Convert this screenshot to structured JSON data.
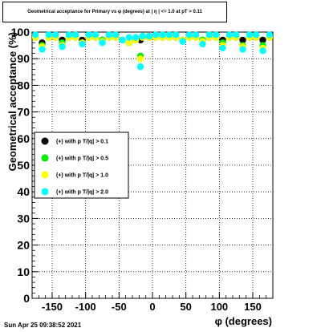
{
  "chart_data": {
    "type": "scatter",
    "title": "Geometrical acceptance for Primary vs φ (degrees) at | η | <= 1.0 at pT > 0.11",
    "xlabel": "φ (degrees)",
    "ylabel": "Geometrical acceptance (%)",
    "xlim": [
      -180,
      180
    ],
    "ylim": [
      0,
      100
    ],
    "x_ticks": [
      -150,
      -100,
      -50,
      0,
      50,
      100,
      150
    ],
    "y_ticks": [
      0,
      10,
      20,
      30,
      40,
      50,
      60,
      70,
      80,
      90,
      100
    ],
    "grid": true,
    "legend_position": "middle-left",
    "x": [
      -175,
      -165,
      -155,
      -145,
      -135,
      -125,
      -115,
      -105,
      -95,
      -85,
      -75,
      -65,
      -55,
      -45,
      -35,
      -25,
      -18,
      -15,
      -5,
      5,
      15,
      25,
      35,
      45,
      55,
      65,
      75,
      85,
      95,
      105,
      115,
      125,
      135,
      145,
      155,
      165,
      175
    ],
    "series": [
      {
        "name": "(+) with p T/|q| > 0.1",
        "color": "#000000",
        "values": [
          98,
          96,
          98,
          98,
          97,
          98,
          98,
          97,
          98,
          98,
          97,
          98,
          98,
          97,
          96,
          97,
          97,
          98,
          98,
          98,
          98,
          98,
          98,
          97,
          98,
          98,
          97,
          98,
          98,
          97,
          98,
          98,
          97,
          98,
          98,
          97,
          98
        ]
      },
      {
        "name": "(+) with p T/|q| > 0.5",
        "color": "#00ee00",
        "values": [
          98,
          95,
          98,
          98,
          96,
          98,
          98,
          96,
          98,
          98,
          97,
          98,
          98,
          97,
          96,
          97,
          91,
          98,
          98,
          98,
          98,
          98,
          98,
          97,
          98,
          98,
          97,
          98,
          98,
          96,
          98,
          98,
          95,
          98,
          98,
          95,
          98
        ]
      },
      {
        "name": "(+) with p T/|q| > 1.0",
        "color": "#ffff00",
        "values": [
          98,
          94.5,
          98,
          98,
          95,
          98,
          98,
          96,
          98,
          98,
          96.5,
          98,
          98,
          97,
          96,
          97,
          90,
          98,
          98,
          98,
          98,
          98,
          98,
          97,
          98,
          98,
          96.5,
          98,
          98,
          95,
          98,
          98,
          94.5,
          98,
          98,
          94,
          98
        ]
      },
      {
        "name": "(+) with p T/|q| > 2.0",
        "color": "#00ffff",
        "values": [
          99,
          93.5,
          99,
          99,
          94.5,
          99,
          99,
          95.5,
          99,
          99,
          96,
          99,
          99,
          97,
          98,
          98,
          87,
          98.5,
          98.5,
          99,
          99,
          99,
          99,
          96.5,
          99,
          99,
          95.5,
          99,
          99,
          94,
          99,
          99,
          93.5,
          99,
          99,
          93,
          99
        ]
      }
    ]
  },
  "footer": {
    "timestamp": "Sun Apr 25 09:38:52 2021"
  }
}
